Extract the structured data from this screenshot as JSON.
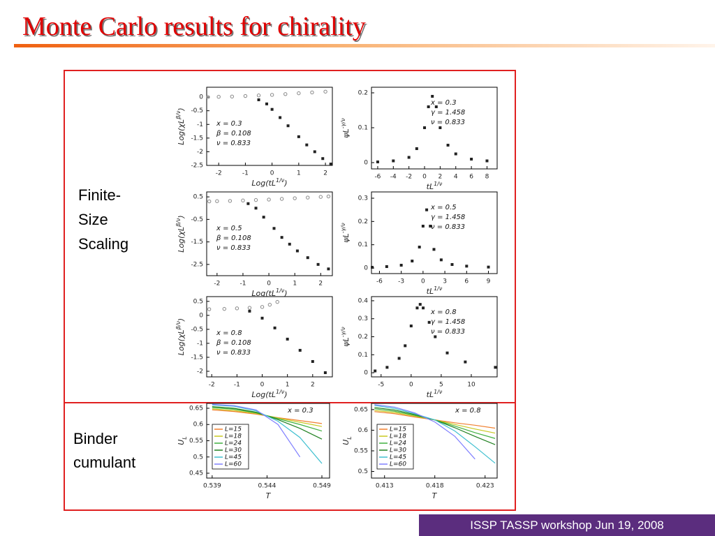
{
  "title": "Monte Carlo results for chirality",
  "section_labels": {
    "scaling": [
      "Finite-",
      "Size",
      "Scaling"
    ],
    "binder": [
      "Binder",
      "cumulant"
    ]
  },
  "footer": "ISSP TASSP workshop  Jun 19, 2008",
  "chart_data": [
    {
      "type": "scatter",
      "xlabel": {
        "text": "Log(tL",
        "sup": "1/ν",
        "end": ")"
      },
      "ylabel": {
        "text": "Log(χL",
        "sup": "β/ν",
        "end": ")"
      },
      "annotation": [
        "x =   0.3",
        "β =  0.108",
        "ν =  0.833"
      ],
      "xlim": [
        -2.45,
        2.26
      ],
      "xticks": [
        -2,
        -1,
        0,
        1,
        2
      ],
      "ylim": [
        -2.5,
        0.36
      ],
      "yticks": [
        0,
        -0.5,
        -1,
        -1.5,
        -2,
        -2.5
      ],
      "series": [
        {
          "color": "#888888",
          "marker": "circle",
          "x": [
            -2.4,
            -2,
            -1.5,
            -1,
            -0.5,
            0,
            0.5,
            1,
            1.5,
            2
          ],
          "values": [
            0,
            0.01,
            0.02,
            0.04,
            0.06,
            0.08,
            0.11,
            0.14,
            0.17,
            0.2
          ]
        },
        {
          "color": "#222222",
          "marker": "square",
          "x": [
            -0.5,
            -0.2,
            0,
            0.3,
            0.6,
            1,
            1.3,
            1.6,
            1.9,
            2.2
          ],
          "values": [
            -0.1,
            -0.25,
            -0.45,
            -0.75,
            -1.05,
            -1.45,
            -1.75,
            -2.0,
            -2.25,
            -2.45
          ]
        }
      ]
    },
    {
      "type": "scatter",
      "xlabel": {
        "text": "tL",
        "sup": "1/ν"
      },
      "ylabel": {
        "text": "ψL",
        "sup": "-γ/ν"
      },
      "annotation": [
        "x =    0.3",
        "γ =  1.458",
        "ν =  0.833"
      ],
      "xlim": [
        -6.8,
        9.3
      ],
      "xticks": [
        -6,
        -4,
        -2,
        0,
        2,
        4,
        6,
        8
      ],
      "ylim": [
        -0.018,
        0.216
      ],
      "yticks": [
        0,
        0.1,
        0.2
      ],
      "series": [
        {
          "color": "#222222",
          "marker": "square",
          "x": [
            -6,
            -4,
            -2,
            -1,
            0,
            0.5,
            1,
            1.5,
            2,
            3,
            4,
            6,
            8
          ],
          "values": [
            0.002,
            0.005,
            0.015,
            0.04,
            0.1,
            0.16,
            0.19,
            0.16,
            0.1,
            0.05,
            0.025,
            0.01,
            0.005
          ]
        }
      ]
    },
    {
      "type": "scatter",
      "xlabel": {
        "text": "Log(tL",
        "sup": "1/ν",
        "end": ")"
      },
      "ylabel": {
        "text": "Log(χL",
        "sup": "β/ν",
        "end": ")"
      },
      "annotation": [
        "x =   0.5",
        "β =  0.108",
        "ν =  0.833"
      ],
      "xlim": [
        -2.4,
        2.45
      ],
      "xticks": [
        -2,
        -1,
        0,
        1,
        2
      ],
      "ylim": [
        -3.0,
        0.72
      ],
      "yticks": [
        0.5,
        -0.5,
        -1.5,
        -2.5
      ],
      "series": [
        {
          "color": "#888888",
          "marker": "circle",
          "x": [
            -2.3,
            -2,
            -1.5,
            -1,
            -0.5,
            0,
            0.5,
            1,
            1.5,
            2,
            2.3
          ],
          "values": [
            0.3,
            0.31,
            0.32,
            0.34,
            0.36,
            0.38,
            0.41,
            0.44,
            0.47,
            0.5,
            0.52
          ]
        },
        {
          "color": "#222222",
          "marker": "square",
          "x": [
            -0.8,
            -0.5,
            -0.2,
            0.2,
            0.5,
            0.8,
            1.1,
            1.5,
            1.9,
            2.3
          ],
          "values": [
            0.2,
            0,
            -0.4,
            -0.9,
            -1.3,
            -1.6,
            -1.9,
            -2.2,
            -2.5,
            -2.7
          ]
        }
      ]
    },
    {
      "type": "scatter",
      "xlabel": {
        "text": "tL",
        "sup": "1/ν"
      },
      "ylabel": {
        "text": "ψL",
        "sup": "-γ/ν"
      },
      "annotation": [
        "x =    0.5",
        "γ =  1.458",
        "ν =  0.833"
      ],
      "xlim": [
        -7.1,
        10.2
      ],
      "xticks": [
        -6,
        -3,
        0,
        3,
        6,
        9
      ],
      "ylim": [
        -0.024,
        0.327
      ],
      "yticks": [
        0,
        0.1,
        0.2,
        0.3
      ],
      "series": [
        {
          "color": "#222222",
          "marker": "square",
          "x": [
            -7,
            -5,
            -3,
            -1.5,
            -0.5,
            0,
            0.5,
            1,
            1.5,
            2.5,
            4,
            6,
            9
          ],
          "values": [
            0.003,
            0.006,
            0.012,
            0.03,
            0.09,
            0.18,
            0.25,
            0.18,
            0.08,
            0.035,
            0.015,
            0.008,
            0.004
          ]
        }
      ]
    },
    {
      "type": "scatter",
      "xlabel": {
        "text": "Log(tL",
        "sup": "1/ν",
        "end": ")"
      },
      "ylabel": {
        "text": "Log(χL",
        "sup": "β/ν",
        "end": ")"
      },
      "annotation": [
        "x =   0.8",
        "β =  0.108",
        "ν =  0.833"
      ],
      "xlim": [
        -2.2,
        2.78
      ],
      "xticks": [
        -2,
        -1,
        0,
        1,
        2
      ],
      "ylim": [
        -2.2,
        0.67
      ],
      "yticks": [
        0.5,
        0,
        -0.5,
        -1,
        -1.5,
        -2
      ],
      "series": [
        {
          "color": "#888888",
          "marker": "circle",
          "x": [
            -2.1,
            -1.5,
            -1,
            -0.5,
            0,
            0.3,
            0.6
          ],
          "values": [
            0.22,
            0.23,
            0.25,
            0.27,
            0.3,
            0.38,
            0.48
          ]
        },
        {
          "color": "#222222",
          "marker": "square",
          "x": [
            -0.5,
            0,
            0.5,
            1,
            1.5,
            2,
            2.5
          ],
          "values": [
            0.15,
            -0.1,
            -0.45,
            -0.85,
            -1.25,
            -1.65,
            -2.05
          ]
        }
      ]
    },
    {
      "type": "scatter",
      "xlabel": {
        "text": "tL",
        "sup": "1/ν"
      },
      "ylabel": {
        "text": "ψL",
        "sup": "-γ/ν"
      },
      "annotation": [
        "x =    0.8",
        "γ =  1.458",
        "ν =  0.833"
      ],
      "xlim": [
        -6.6,
        14.3
      ],
      "xticks": [
        -5,
        0,
        5,
        10
      ],
      "ylim": [
        -0.023,
        0.423
      ],
      "yticks": [
        0,
        0.1,
        0.2,
        0.3,
        0.4
      ],
      "series": [
        {
          "color": "#222222",
          "marker": "square",
          "x": [
            -6,
            -4,
            -2,
            -1,
            0,
            1,
            1.5,
            2,
            3,
            4,
            6,
            9,
            14
          ],
          "values": [
            0.01,
            0.03,
            0.08,
            0.15,
            0.26,
            0.36,
            0.38,
            0.36,
            0.28,
            0.2,
            0.11,
            0.06,
            0.03
          ]
        }
      ]
    },
    {
      "type": "line",
      "xlabel": {
        "text": "T"
      },
      "ylabel": {
        "text": "U",
        "sub": "L"
      },
      "annotation": [
        "x = 0.3"
      ],
      "xlim": [
        0.5385,
        0.5497
      ],
      "xticks": [
        0.539,
        0.544,
        0.549
      ],
      "ylim": [
        0.435,
        0.665
      ],
      "yticks": [
        0.65,
        0.6,
        0.55,
        0.5,
        0.45
      ],
      "x": [
        0.539,
        0.541,
        0.543,
        0.545,
        0.547,
        0.549
      ],
      "series": [
        {
          "name": "L=15",
          "color": "#f08030",
          "values": [
            0.645,
            0.64,
            0.632,
            0.621,
            0.612,
            0.603
          ]
        },
        {
          "name": "L=18",
          "color": "#c8c820",
          "values": [
            0.648,
            0.643,
            0.634,
            0.62,
            0.607,
            0.594
          ]
        },
        {
          "name": "L=24",
          "color": "#40b040",
          "values": [
            0.652,
            0.647,
            0.636,
            0.618,
            0.6,
            0.58
          ]
        },
        {
          "name": "L=30",
          "color": "#208020",
          "values": [
            0.655,
            0.65,
            0.638,
            0.615,
            0.588,
            0.555
          ]
        },
        {
          "name": "L=45",
          "color": "#40c0d0",
          "values": [
            0.66,
            0.656,
            0.642,
            0.61,
            0.56,
            0.48
          ]
        },
        {
          "name": "L=60",
          "color": "#8080ff",
          "values": [
            0.662,
            0.658,
            0.645,
            0.6,
            0.5,
            null
          ]
        }
      ]
    },
    {
      "type": "line",
      "xlabel": {
        "text": "T"
      },
      "ylabel": {
        "text": "U",
        "sub": "L"
      },
      "annotation": [
        "x = 0.8"
      ],
      "xlim": [
        0.4117,
        0.4242
      ],
      "xticks": [
        0.413,
        0.418,
        0.423
      ],
      "ylim": [
        0.484,
        0.665
      ],
      "yticks": [
        0.65,
        0.6,
        0.55,
        0.5
      ],
      "x": [
        0.412,
        0.414,
        0.416,
        0.418,
        0.42,
        0.422,
        0.424
      ],
      "series": [
        {
          "name": "L=15",
          "color": "#f08030",
          "values": [
            0.645,
            0.64,
            0.632,
            0.625,
            0.618,
            0.612,
            0.605
          ]
        },
        {
          "name": "L=18",
          "color": "#c8c820",
          "values": [
            0.648,
            0.643,
            0.634,
            0.625,
            0.614,
            0.603,
            0.593
          ]
        },
        {
          "name": "L=24",
          "color": "#40b040",
          "values": [
            0.652,
            0.646,
            0.636,
            0.625,
            0.61,
            0.594,
            0.58
          ]
        },
        {
          "name": "L=30",
          "color": "#208020",
          "values": [
            0.655,
            0.649,
            0.638,
            0.625,
            0.606,
            0.585,
            0.565
          ]
        },
        {
          "name": "L=45",
          "color": "#40c0d0",
          "values": [
            0.66,
            0.653,
            0.64,
            0.625,
            0.598,
            0.56,
            0.52
          ]
        },
        {
          "name": "L=60",
          "color": "#8080ff",
          "values": [
            0.662,
            0.656,
            0.642,
            0.62,
            0.585,
            0.53,
            null
          ]
        }
      ]
    }
  ]
}
